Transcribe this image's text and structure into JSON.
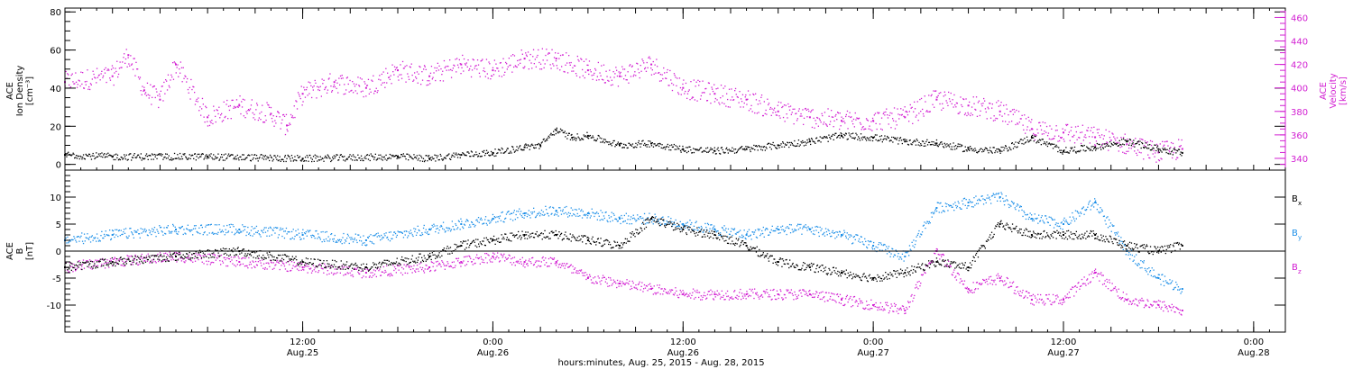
{
  "figure": {
    "xlabel": "hours:minutes, Aug. 25, 2015 - Aug. 28, 2015",
    "x_range": [
      "2015-08-24T21:00",
      "2015-08-28T02:00"
    ],
    "x_ticks": [
      {
        "t": "2015-08-25T12:00",
        "line1": "12:00",
        "line2": "Aug.25"
      },
      {
        "t": "2015-08-26T00:00",
        "line1": "0:00",
        "line2": "Aug.26"
      },
      {
        "t": "2015-08-26T12:00",
        "line1": "12:00",
        "line2": "Aug.26"
      },
      {
        "t": "2015-08-27T00:00",
        "line1": "0:00",
        "line2": "Aug.27"
      },
      {
        "t": "2015-08-27T12:00",
        "line1": "12:00",
        "line2": "Aug.27"
      },
      {
        "t": "2015-08-28T00:00",
        "line1": "0:00",
        "line2": "Aug.28"
      }
    ],
    "colors": {
      "black": "#000000",
      "magenta": "#d21fd2",
      "blue": "#1e90e8"
    }
  },
  "chart_data": [
    {
      "type": "scatter",
      "panel": "plasma",
      "ylabel_left": [
        "ACE",
        "Ion Density",
        "[cm⁻³]"
      ],
      "ylabel_right": [
        "ACE",
        "Velocity",
        "[km/s]"
      ],
      "ylim": [
        -3,
        82
      ],
      "ylim_right": [
        330,
        468
      ],
      "yticks": [
        0,
        20,
        40,
        60,
        80
      ],
      "yticks_right": [
        340,
        360,
        380,
        400,
        420,
        440,
        460
      ],
      "series": [
        {
          "color": "#000000",
          "axis": "left",
          "points": [
            [
              "2015-08-24T21:00",
              5
            ],
            [
              "2015-08-25T00:00",
              4
            ],
            [
              "2015-08-25T06:00",
              4
            ],
            [
              "2015-08-25T12:00",
              3
            ],
            [
              "2015-08-25T18:00",
              4
            ],
            [
              "2015-08-25T20:00",
              3
            ],
            [
              "2015-08-25T22:00",
              5
            ],
            [
              "2015-08-26T00:00",
              6
            ],
            [
              "2015-08-26T02:00",
              9
            ],
            [
              "2015-08-26T03:00",
              10
            ],
            [
              "2015-08-26T04:00",
              18
            ],
            [
              "2015-08-26T05:00",
              14
            ],
            [
              "2015-08-26T06:00",
              15
            ],
            [
              "2015-08-26T08:00",
              10
            ],
            [
              "2015-08-26T10:00",
              11
            ],
            [
              "2015-08-26T12:00",
              8
            ],
            [
              "2015-08-26T14:00",
              7
            ],
            [
              "2015-08-26T16:00",
              8
            ],
            [
              "2015-08-26T18:00",
              10
            ],
            [
              "2015-08-26T20:00",
              12
            ],
            [
              "2015-08-26T22:00",
              15
            ],
            [
              "2015-08-27T00:00",
              14
            ],
            [
              "2015-08-27T02:00",
              12
            ],
            [
              "2015-08-27T04:00",
              11
            ],
            [
              "2015-08-27T06:00",
              8
            ],
            [
              "2015-08-27T08:00",
              7
            ],
            [
              "2015-08-27T10:00",
              14
            ],
            [
              "2015-08-27T12:00",
              7
            ],
            [
              "2015-08-27T14:00",
              9
            ],
            [
              "2015-08-27T16:00",
              12
            ],
            [
              "2015-08-27T18:00",
              8
            ],
            [
              "2015-08-27T19:30",
              6
            ]
          ]
        },
        {
          "color": "#d21fd2",
          "axis": "right",
          "points": [
            [
              "2015-08-24T21:00",
              405
            ],
            [
              "2015-08-25T00:00",
              410
            ],
            [
              "2015-08-25T01:00",
              428
            ],
            [
              "2015-08-25T02:00",
              398
            ],
            [
              "2015-08-25T03:00",
              390
            ],
            [
              "2015-08-25T04:00",
              420
            ],
            [
              "2015-08-25T06:00",
              375
            ],
            [
              "2015-08-25T08:00",
              385
            ],
            [
              "2015-08-25T10:00",
              378
            ],
            [
              "2015-08-25T11:00",
              368
            ],
            [
              "2015-08-25T12:00",
              395
            ],
            [
              "2015-08-25T14:00",
              405
            ],
            [
              "2015-08-25T16:00",
              400
            ],
            [
              "2015-08-25T18:00",
              415
            ],
            [
              "2015-08-25T20:00",
              410
            ],
            [
              "2015-08-25T22:00",
              420
            ],
            [
              "2015-08-26T00:00",
              415
            ],
            [
              "2015-08-26T02:00",
              425
            ],
            [
              "2015-08-26T04:00",
              425
            ],
            [
              "2015-08-26T06:00",
              415
            ],
            [
              "2015-08-26T08:00",
              410
            ],
            [
              "2015-08-26T10:00",
              420
            ],
            [
              "2015-08-26T12:00",
              400
            ],
            [
              "2015-08-26T14:00",
              395
            ],
            [
              "2015-08-26T16:00",
              390
            ],
            [
              "2015-08-26T18:00",
              380
            ],
            [
              "2015-08-26T20:00",
              375
            ],
            [
              "2015-08-26T22:00",
              372
            ],
            [
              "2015-08-27T00:00",
              372
            ],
            [
              "2015-08-27T02:00",
              375
            ],
            [
              "2015-08-27T04:00",
              390
            ],
            [
              "2015-08-27T06:00",
              385
            ],
            [
              "2015-08-27T08:00",
              380
            ],
            [
              "2015-08-27T10:00",
              365
            ],
            [
              "2015-08-27T12:00",
              362
            ],
            [
              "2015-08-27T14:00",
              358
            ],
            [
              "2015-08-27T16:00",
              352
            ],
            [
              "2015-08-27T18:00",
              345
            ],
            [
              "2015-08-27T19:30",
              348
            ]
          ]
        }
      ]
    },
    {
      "type": "scatter",
      "panel": "magnetic-field",
      "ylabel_left": [
        "ACE",
        "B",
        "[nT]"
      ],
      "ylim": [
        -15,
        15
      ],
      "yticks": [
        -10,
        -5,
        0,
        5,
        10
      ],
      "zero_line": true,
      "series": [
        {
          "name": "Bx",
          "legend_label": "B",
          "legend_sub": "x",
          "color": "#000000",
          "points": [
            [
              "2015-08-24T21:00",
              -3
            ],
            [
              "2015-08-25T00:00",
              -2
            ],
            [
              "2015-08-25T04:00",
              -1
            ],
            [
              "2015-08-25T08:00",
              0
            ],
            [
              "2015-08-25T12:00",
              -2
            ],
            [
              "2015-08-25T16:00",
              -3
            ],
            [
              "2015-08-25T20:00",
              -1
            ],
            [
              "2015-08-25T22:00",
              1
            ],
            [
              "2015-08-26T00:00",
              2
            ],
            [
              "2015-08-26T02:00",
              3
            ],
            [
              "2015-08-26T04:00",
              3
            ],
            [
              "2015-08-26T06:00",
              2
            ],
            [
              "2015-08-26T08:00",
              1
            ],
            [
              "2015-08-26T10:00",
              6
            ],
            [
              "2015-08-26T12:00",
              4
            ],
            [
              "2015-08-26T14:00",
              3
            ],
            [
              "2015-08-26T16:00",
              1
            ],
            [
              "2015-08-26T18:00",
              -2
            ],
            [
              "2015-08-26T20:00",
              -3
            ],
            [
              "2015-08-26T22:00",
              -4
            ],
            [
              "2015-08-27T00:00",
              -5
            ],
            [
              "2015-08-27T02:00",
              -4
            ],
            [
              "2015-08-27T04:00",
              -2
            ],
            [
              "2015-08-27T06:00",
              -3
            ],
            [
              "2015-08-27T08:00",
              5
            ],
            [
              "2015-08-27T10:00",
              3
            ],
            [
              "2015-08-27T12:00",
              3
            ],
            [
              "2015-08-27T14:00",
              3
            ],
            [
              "2015-08-27T16:00",
              1
            ],
            [
              "2015-08-27T18:00",
              0
            ],
            [
              "2015-08-27T19:30",
              1
            ]
          ]
        },
        {
          "name": "By",
          "legend_label": "B",
          "legend_sub": "y",
          "color": "#1e90e8",
          "points": [
            [
              "2015-08-24T21:00",
              2
            ],
            [
              "2015-08-25T00:00",
              3
            ],
            [
              "2015-08-25T04:00",
              4
            ],
            [
              "2015-08-25T08:00",
              4
            ],
            [
              "2015-08-25T12:00",
              3
            ],
            [
              "2015-08-25T16:00",
              2
            ],
            [
              "2015-08-25T20:00",
              4
            ],
            [
              "2015-08-25T22:00",
              5
            ],
            [
              "2015-08-26T00:00",
              6
            ],
            [
              "2015-08-26T02:00",
              7
            ],
            [
              "2015-08-26T04:00",
              7.5
            ],
            [
              "2015-08-26T06:00",
              7
            ],
            [
              "2015-08-26T08:00",
              6
            ],
            [
              "2015-08-26T10:00",
              6
            ],
            [
              "2015-08-26T12:00",
              5
            ],
            [
              "2015-08-26T14:00",
              4
            ],
            [
              "2015-08-26T16:00",
              3
            ],
            [
              "2015-08-26T18:00",
              4
            ],
            [
              "2015-08-26T20:00",
              4
            ],
            [
              "2015-08-26T22:00",
              3
            ],
            [
              "2015-08-27T00:00",
              1
            ],
            [
              "2015-08-27T02:00",
              -1
            ],
            [
              "2015-08-27T04:00",
              8
            ],
            [
              "2015-08-27T06:00",
              9
            ],
            [
              "2015-08-27T08:00",
              10
            ],
            [
              "2015-08-27T10:00",
              6
            ],
            [
              "2015-08-27T12:00",
              5
            ],
            [
              "2015-08-27T14:00",
              9
            ],
            [
              "2015-08-27T16:00",
              0
            ],
            [
              "2015-08-27T18:00",
              -5
            ],
            [
              "2015-08-27T19:30",
              -7
            ]
          ]
        },
        {
          "name": "Bz",
          "legend_label": "B",
          "legend_sub": "z",
          "color": "#d21fd2",
          "points": [
            [
              "2015-08-24T21:00",
              -3
            ],
            [
              "2015-08-25T00:00",
              -2
            ],
            [
              "2015-08-25T04:00",
              -1
            ],
            [
              "2015-08-25T08:00",
              -2
            ],
            [
              "2015-08-25T12:00",
              -3
            ],
            [
              "2015-08-25T16:00",
              -4
            ],
            [
              "2015-08-25T20:00",
              -3
            ],
            [
              "2015-08-25T22:00",
              -2
            ],
            [
              "2015-08-26T00:00",
              -1
            ],
            [
              "2015-08-26T02:00",
              -2
            ],
            [
              "2015-08-26T04:00",
              -2
            ],
            [
              "2015-08-26T06:00",
              -5
            ],
            [
              "2015-08-26T08:00",
              -6
            ],
            [
              "2015-08-26T10:00",
              -7
            ],
            [
              "2015-08-26T12:00",
              -8
            ],
            [
              "2015-08-26T14:00",
              -8
            ],
            [
              "2015-08-26T16:00",
              -8
            ],
            [
              "2015-08-26T18:00",
              -8
            ],
            [
              "2015-08-26T20:00",
              -8
            ],
            [
              "2015-08-26T22:00",
              -9
            ],
            [
              "2015-08-27T00:00",
              -10
            ],
            [
              "2015-08-27T02:00",
              -11
            ],
            [
              "2015-08-27T04:00",
              0
            ],
            [
              "2015-08-27T06:00",
              -7
            ],
            [
              "2015-08-27T08:00",
              -5
            ],
            [
              "2015-08-27T10:00",
              -9
            ],
            [
              "2015-08-27T12:00",
              -9
            ],
            [
              "2015-08-27T14:00",
              -4
            ],
            [
              "2015-08-27T16:00",
              -9
            ],
            [
              "2015-08-27T18:00",
              -10
            ],
            [
              "2015-08-27T19:30",
              -11
            ]
          ]
        }
      ]
    }
  ]
}
